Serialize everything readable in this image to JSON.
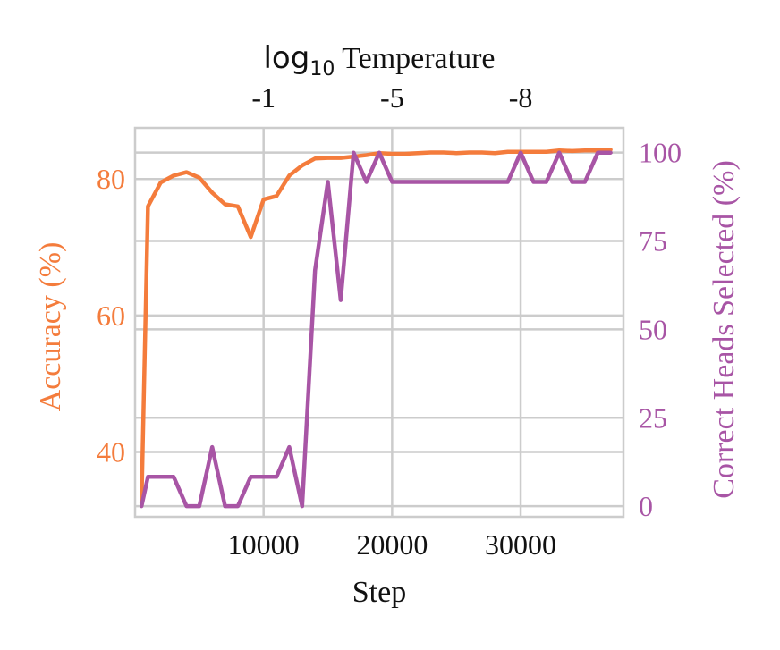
{
  "chart_data": {
    "type": "line",
    "xlabel": "Step",
    "x_ticks": [
      10000,
      20000,
      30000
    ],
    "x_range": [
      0,
      38000
    ],
    "top_axis": {
      "label_prefix": "log",
      "label_subscript": "10",
      "label_suffix": " Temperature",
      "ticks": [
        {
          "x": 10000,
          "label": "-1"
        },
        {
          "x": 20000,
          "label": "-5"
        },
        {
          "x": 30000,
          "label": "-8"
        }
      ]
    },
    "left_axis": {
      "label": "Accuracy (%)",
      "ticks": [
        40,
        60,
        80
      ],
      "range": [
        30.5,
        87.5
      ],
      "color": "#f47c3c"
    },
    "right_axis": {
      "label": "Correct Heads Selected (%)",
      "ticks": [
        0,
        25,
        50,
        75,
        100
      ],
      "range": [
        -3,
        107
      ],
      "color": "#a855a5"
    },
    "grid": true,
    "series": [
      {
        "axis": "left",
        "color": "#f47c3c",
        "x": [
          500,
          1000,
          2000,
          3000,
          4000,
          5000,
          6000,
          7000,
          8000,
          9000,
          10000,
          11000,
          12000,
          13000,
          14000,
          15000,
          16000,
          17000,
          18000,
          19000,
          20000,
          21000,
          22000,
          23000,
          24000,
          25000,
          26000,
          27000,
          28000,
          29000,
          30000,
          31000,
          32000,
          33000,
          34000,
          35000,
          36000,
          37000
        ],
        "y": [
          32.5,
          76,
          79.5,
          80.5,
          81,
          80.2,
          78,
          76.3,
          76,
          71.5,
          77,
          77.5,
          80.5,
          82,
          83,
          83.1,
          83.1,
          83.3,
          83.5,
          83.8,
          83.7,
          83.7,
          83.8,
          83.9,
          83.9,
          83.8,
          83.9,
          83.9,
          83.8,
          84,
          84,
          84,
          84,
          84.2,
          84.1,
          84.2,
          84.2,
          84.3
        ]
      },
      {
        "axis": "right",
        "color": "#a855a5",
        "x": [
          500,
          1000,
          2000,
          3000,
          4000,
          5000,
          6000,
          7000,
          8000,
          9000,
          10000,
          11000,
          12000,
          13000,
          14000,
          15000,
          16000,
          17000,
          18000,
          19000,
          20000,
          21000,
          22000,
          23000,
          24000,
          25000,
          26000,
          27000,
          28000,
          29000,
          30000,
          31000,
          32000,
          33000,
          34000,
          35000,
          36000,
          37000
        ],
        "y": [
          0,
          8.3,
          8.3,
          8.3,
          0,
          0,
          16.7,
          0,
          0,
          8.3,
          8.3,
          8.3,
          16.7,
          0,
          66.7,
          91.7,
          58.3,
          100,
          91.7,
          100,
          91.7,
          91.7,
          91.7,
          91.7,
          91.7,
          91.7,
          91.7,
          91.7,
          91.7,
          91.7,
          100,
          91.7,
          91.7,
          100,
          91.7,
          91.7,
          100,
          100
        ]
      }
    ]
  }
}
